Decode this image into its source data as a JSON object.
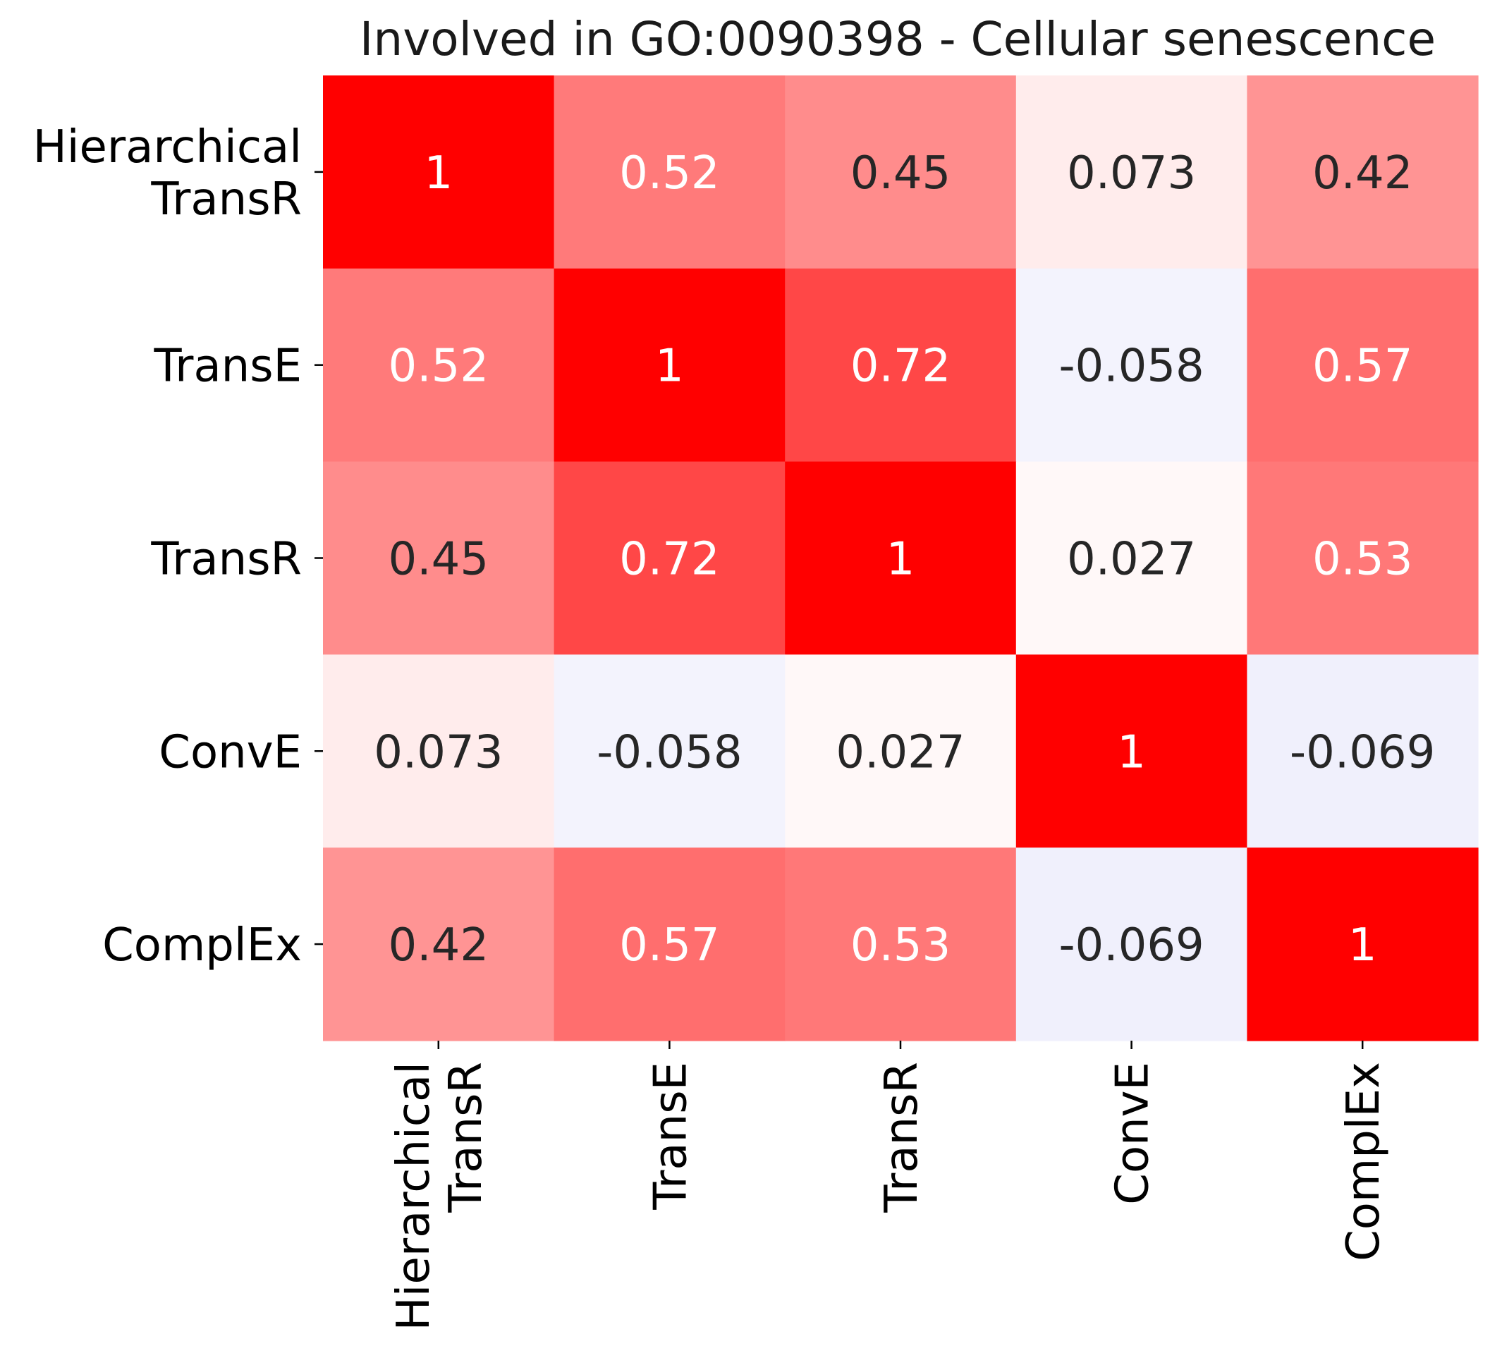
{
  "chart_data": {
    "type": "heatmap",
    "title": "Involved in GO:0090398 - Cellular senescence",
    "row_labels": [
      [
        "Hierarchical",
        "TransR"
      ],
      [
        "TransE"
      ],
      [
        "TransR"
      ],
      [
        "ConvE"
      ],
      [
        "ComplEx"
      ]
    ],
    "col_labels": [
      [
        "Hierarchical",
        "TransR"
      ],
      [
        "TransE"
      ],
      [
        "TransR"
      ],
      [
        "ConvE"
      ],
      [
        "ComplEx"
      ]
    ],
    "values": [
      [
        1,
        0.52,
        0.45,
        0.073,
        0.42
      ],
      [
        0.52,
        1,
        0.72,
        -0.058,
        0.57
      ],
      [
        0.45,
        0.72,
        1,
        0.027,
        0.53
      ],
      [
        0.073,
        -0.058,
        0.027,
        1,
        -0.069
      ],
      [
        0.42,
        0.57,
        0.53,
        -0.069,
        1
      ]
    ],
    "value_labels": [
      [
        "1",
        "0.52",
        "0.45",
        "0.073",
        "0.42"
      ],
      [
        "0.52",
        "1",
        "0.72",
        "-0.058",
        "0.57"
      ],
      [
        "0.45",
        "0.72",
        "1",
        "0.027",
        "0.53"
      ],
      [
        "0.073",
        "-0.058",
        "0.027",
        "1",
        "-0.069"
      ],
      [
        "0.42",
        "0.57",
        "0.53",
        "-0.069",
        "1"
      ]
    ],
    "colorbar": false,
    "grid": false,
    "colors": {
      "high": "#ff0000",
      "neutral": "#ffffff",
      "low": "#f0f0fc",
      "text_dark": "#262626",
      "text_light": "#ffffff"
    }
  }
}
